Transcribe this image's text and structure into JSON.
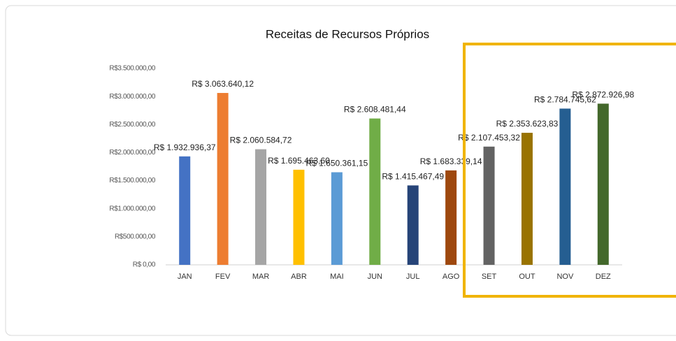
{
  "chart_data": {
    "type": "bar",
    "title": "Receitas de Recursos Próprios",
    "categories": [
      "JAN",
      "FEV",
      "MAR",
      "ABR",
      "MAI",
      "JUN",
      "JUL",
      "AGO",
      "SET",
      "OUT",
      "NOV",
      "DEZ"
    ],
    "values": [
      1932936.37,
      3063640.12,
      2060584.72,
      1695463.6,
      1650361.15,
      2608481.44,
      1415467.49,
      1683339.14,
      2107453.32,
      2353623.83,
      2784745.62,
      2872926.98
    ],
    "value_labels": [
      "R$ 1.932.936,37",
      "R$ 3.063.640,12",
      "R$ 2.060.584,72",
      "R$ 1.695.463,60",
      "R$ 1.650.361,15",
      "R$ 2.608.481,44",
      "R$ 1.415.467,49",
      "R$ 1.683.339,14",
      "R$ 2.107.453,32",
      "R$ 2.353.623,83",
      "R$ 2.784.745,62",
      "R$ 2.872.926,98"
    ],
    "colors": [
      "#4472c4",
      "#ed7d31",
      "#a5a5a5",
      "#ffc000",
      "#5b9bd5",
      "#70ad47",
      "#264478",
      "#9e480e",
      "#636363",
      "#997300",
      "#255e91",
      "#43682b"
    ],
    "ylim": [
      0,
      3500000
    ],
    "yticks": [
      {
        "value": 0,
        "label": "R$ 0,00"
      },
      {
        "value": 500000,
        "label": "R$500.000,00"
      },
      {
        "value": 1000000,
        "label": "R$1.000.000,00"
      },
      {
        "value": 1500000,
        "label": "R$1.500.000,00"
      },
      {
        "value": 2000000,
        "label": "R$2.000.000,00"
      },
      {
        "value": 2500000,
        "label": "R$2.500.000,00"
      },
      {
        "value": 3000000,
        "label": "R$3.000.000,00"
      },
      {
        "value": 3500000,
        "label": "R$3.500.000,00"
      }
    ],
    "grid": false
  }
}
